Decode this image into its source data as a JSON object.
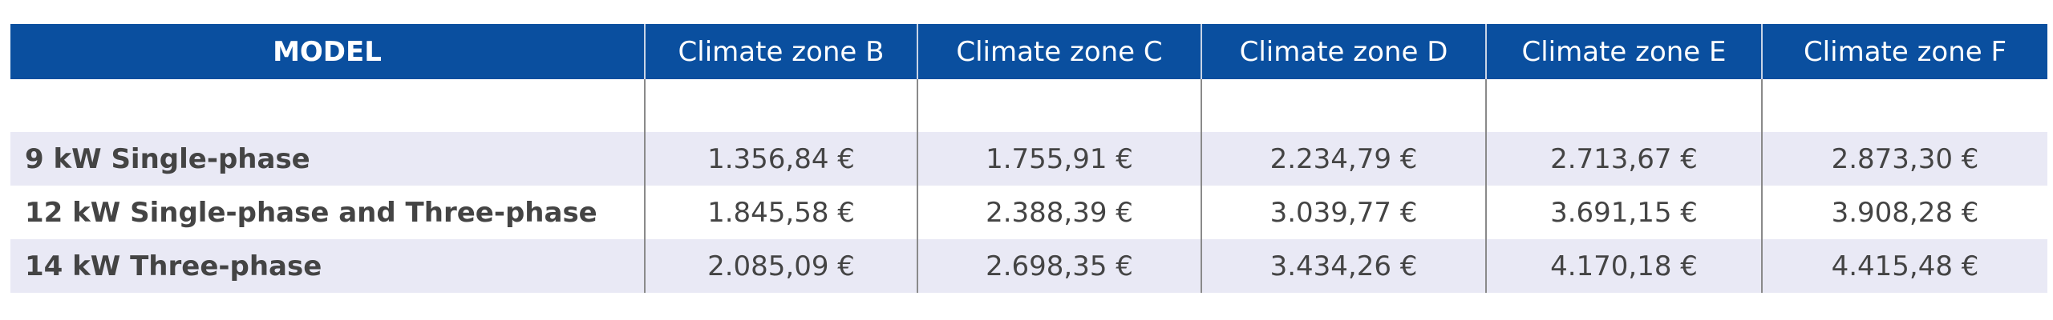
{
  "table": {
    "header": [
      "MODEL",
      "Climate zone B",
      "Climate zone C",
      "Climate zone D",
      "Climate zone E",
      "Climate zone F"
    ],
    "rows": [
      [
        "9 kW Single-phase",
        "1.356,84 €",
        "1.755,91 €",
        "2.234,79 €",
        "2.713,67 €",
        "2.873,30 €"
      ],
      [
        "12 kW Single-phase and Three-phase",
        "1.845,58 €",
        "2.388,39 €",
        "3.039,77 €",
        "3.691,15 €",
        "3.908,28 €"
      ],
      [
        "14 kW Three-phase",
        "2.085,09 €",
        "2.698,35 €",
        "3.434,26 €",
        "4.170,18 €",
        "4.415,48 €"
      ]
    ]
  }
}
